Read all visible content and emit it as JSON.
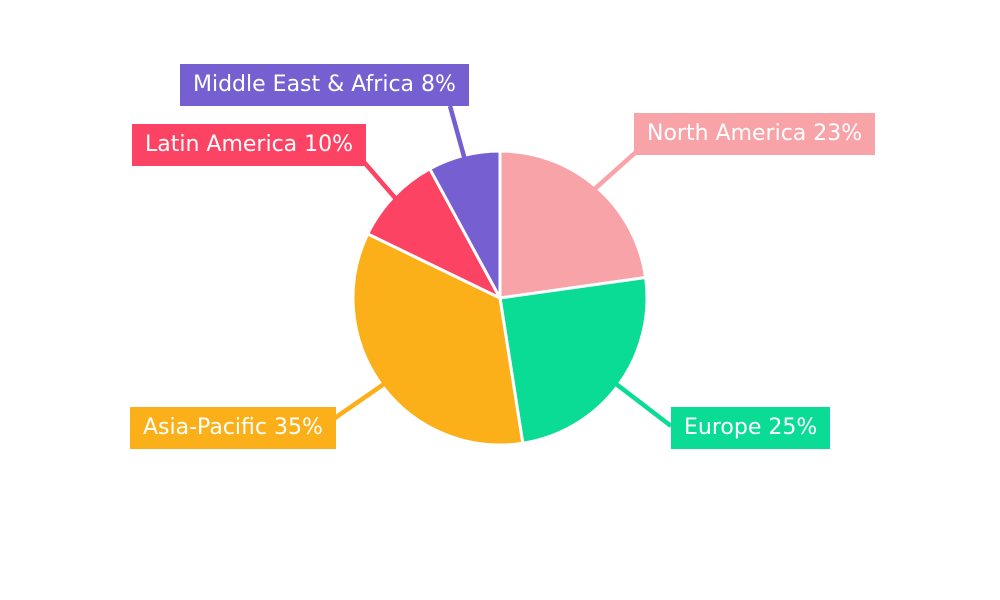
{
  "chart_data": {
    "type": "pie",
    "title": "",
    "background": "#ffffff",
    "start_angle_deg": 0,
    "direction": "clockwise",
    "slice_separator_color": "#ffffff",
    "legend_position": "outside-callouts",
    "slices": [
      {
        "label": "North America",
        "value": 23,
        "display": "North America 23%",
        "color": "#F8A3A8"
      },
      {
        "label": "Europe",
        "value": 25,
        "display": "Europe 25%",
        "color": "#0ADB95"
      },
      {
        "label": "Asia-Pacific",
        "value": 35,
        "display": "Asia-Pacific 35%",
        "color": "#FBAF18"
      },
      {
        "label": "Latin America",
        "value": 10,
        "display": "Latin America 10%",
        "color": "#FC4363"
      },
      {
        "label": "Middle East & Africa",
        "value": 8,
        "display": "Middle East & Africa 8%",
        "color": "#7660D1"
      }
    ]
  }
}
